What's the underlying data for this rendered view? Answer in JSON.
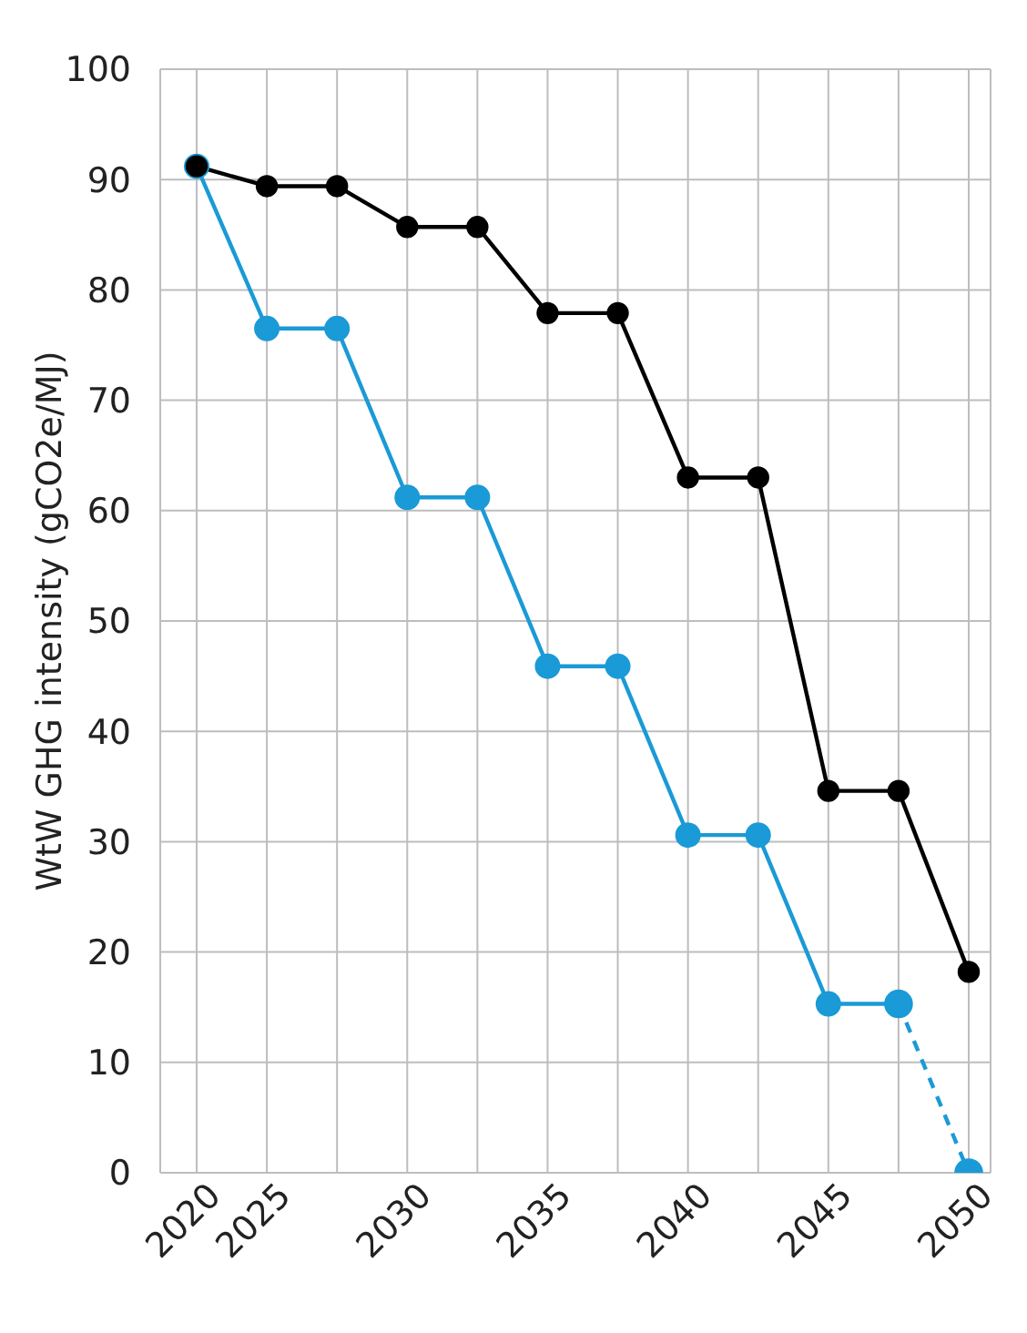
{
  "chart_data": {
    "type": "line",
    "ylabel": "WtW GHG intensity (gCO2e/MJ)",
    "categories": [
      "2020",
      "2025",
      null,
      "2030",
      null,
      "2035",
      null,
      "2040",
      null,
      "2045",
      null,
      "2050"
    ],
    "series": [
      {
        "color": "#000000",
        "values": [
          91.2,
          89.4,
          89.4,
          85.7,
          85.7,
          77.9,
          77.9,
          63,
          63,
          34.6,
          34.6,
          18.2
        ]
      },
      {
        "color": "#1a9ad6",
        "values": [
          91.2,
          76.5,
          76.5,
          61.2,
          61.2,
          45.9,
          45.9,
          30.6,
          30.6,
          15.3,
          15.3,
          null
        ]
      },
      {
        "color": "#1a9ad6",
        "line_style": "dashed",
        "values": [
          null,
          null,
          null,
          null,
          null,
          null,
          null,
          null,
          null,
          null,
          15.3,
          0
        ]
      }
    ],
    "ylim": [
      0,
      100
    ],
    "yticks": [
      0,
      10,
      20,
      30,
      40,
      50,
      60,
      70,
      80,
      90,
      100
    ],
    "grid": true,
    "marker": "circle",
    "line_style": "solid"
  }
}
